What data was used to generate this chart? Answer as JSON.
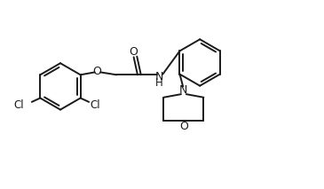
{
  "background_color": "#ffffff",
  "line_color": "#1a1a1a",
  "line_width": 1.4,
  "font_size": 8.5,
  "figsize": [
    3.65,
    2.13
  ],
  "dpi": 100,
  "xlim": [
    0,
    10.0
  ],
  "ylim": [
    0,
    5.8
  ]
}
